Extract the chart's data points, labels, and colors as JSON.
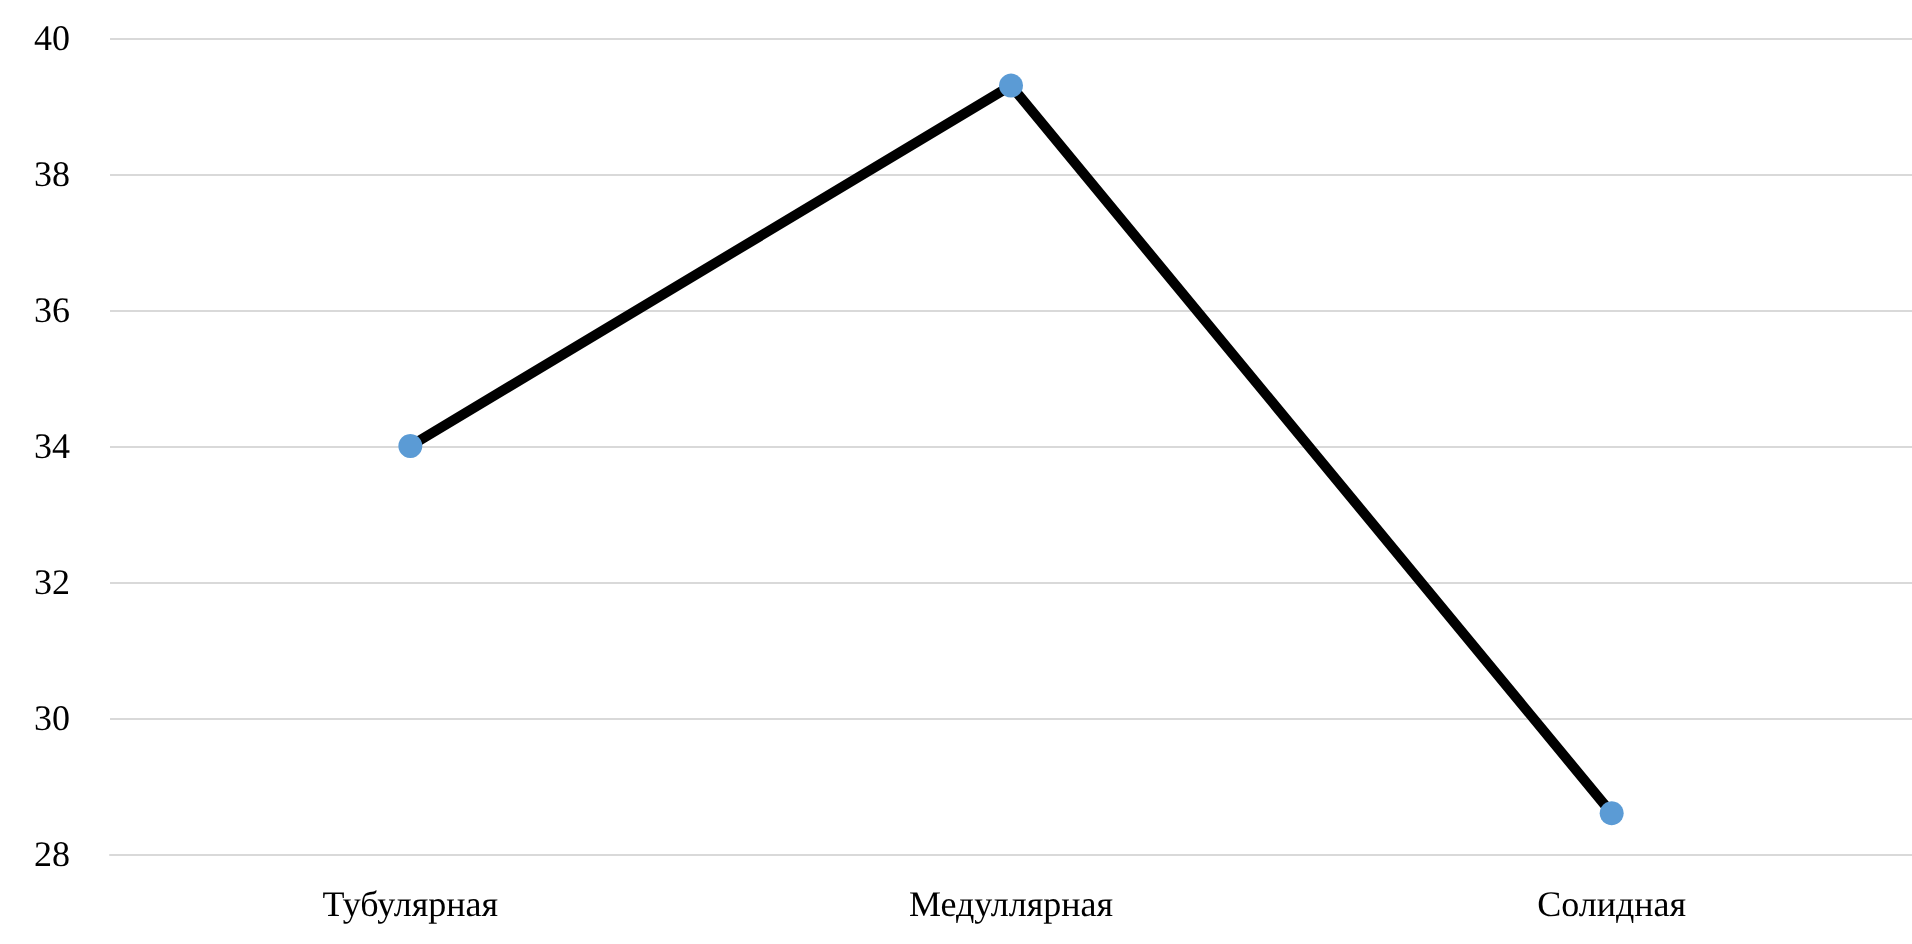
{
  "chart_data": {
    "type": "line",
    "categories": [
      "Тубулярная",
      "Медуллярная",
      "Солидная"
    ],
    "series": [
      {
        "color": "#000000",
        "colors": [
          "#5b9bd5",
          "#5b9bd5",
          "#5b9bd5"
        ],
        "values": [
          34.0,
          39.3,
          28.6
        ]
      }
    ],
    "ylim": [
      28,
      40
    ],
    "yticks": [
      28,
      30,
      32,
      34,
      36,
      38,
      40
    ],
    "grid": "y",
    "marker": "circle",
    "line_style": "solid"
  }
}
